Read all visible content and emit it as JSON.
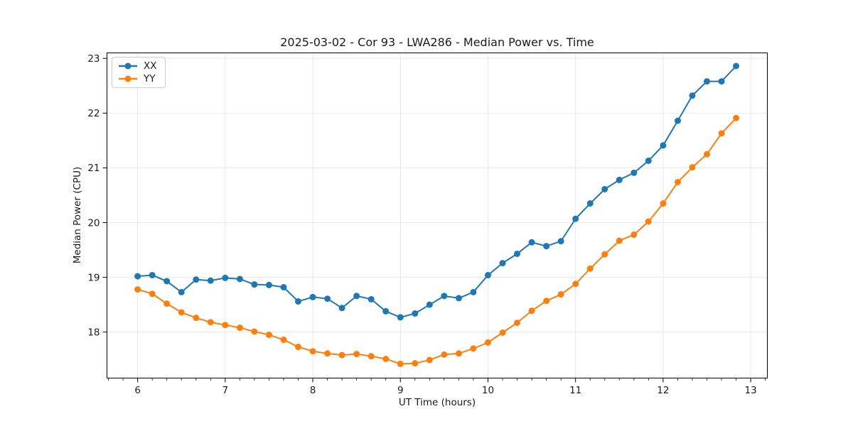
{
  "chart_data": {
    "type": "line",
    "title": "2025-03-02 - Cor 93 - LWA286 - Median Power vs. Time",
    "xlabel": "UT Time (hours)",
    "ylabel": "Median Power (CPU)",
    "x": [
      6.0,
      6.167,
      6.333,
      6.5,
      6.667,
      6.833,
      7.0,
      7.167,
      7.333,
      7.5,
      7.667,
      7.833,
      8.0,
      8.167,
      8.333,
      8.5,
      8.667,
      8.833,
      9.0,
      9.167,
      9.333,
      9.5,
      9.667,
      9.833,
      10.0,
      10.167,
      10.333,
      10.5,
      10.667,
      10.833,
      11.0,
      11.167,
      11.333,
      11.5,
      11.667,
      11.833,
      12.0,
      12.167,
      12.333,
      12.5,
      12.667,
      12.833
    ],
    "series": [
      {
        "name": "XX",
        "color": "#1f77b4",
        "values": [
          19.02,
          19.04,
          18.93,
          18.73,
          18.96,
          18.94,
          18.99,
          18.97,
          18.87,
          18.86,
          18.82,
          18.56,
          18.64,
          18.61,
          18.44,
          18.66,
          18.6,
          18.38,
          18.27,
          18.34,
          18.5,
          18.66,
          18.62,
          18.73,
          19.04,
          19.26,
          19.43,
          19.64,
          19.57,
          19.66,
          20.07,
          20.35,
          20.61,
          20.78,
          20.91,
          21.13,
          21.41,
          21.86,
          22.32,
          22.58,
          22.58,
          22.86
        ]
      },
      {
        "name": "YY",
        "color": "#ff7f0e",
        "values": [
          18.78,
          18.7,
          18.52,
          18.36,
          18.26,
          18.18,
          18.13,
          18.08,
          18.01,
          17.95,
          17.86,
          17.73,
          17.65,
          17.61,
          17.58,
          17.6,
          17.56,
          17.51,
          17.42,
          17.43,
          17.49,
          17.59,
          17.61,
          17.7,
          17.81,
          17.99,
          18.17,
          18.39,
          18.57,
          18.69,
          18.88,
          19.16,
          19.42,
          19.67,
          19.78,
          20.02,
          20.35,
          20.74,
          21.01,
          21.25,
          21.63,
          21.91
        ]
      }
    ],
    "xlim": [
      5.65,
      13.19
    ],
    "ylim": [
      17.16,
      23.1
    ],
    "x_ticks": [
      6,
      7,
      8,
      9,
      10,
      11,
      12,
      13
    ],
    "y_ticks": [
      18,
      19,
      20,
      21,
      22,
      23
    ],
    "x_minor_per_major": 6,
    "grid": true,
    "grid_color": "#e6e6e6",
    "axis_color": "#000000",
    "text_color": "#1a1a1a",
    "legend_position": "upper left",
    "marker": "o"
  }
}
